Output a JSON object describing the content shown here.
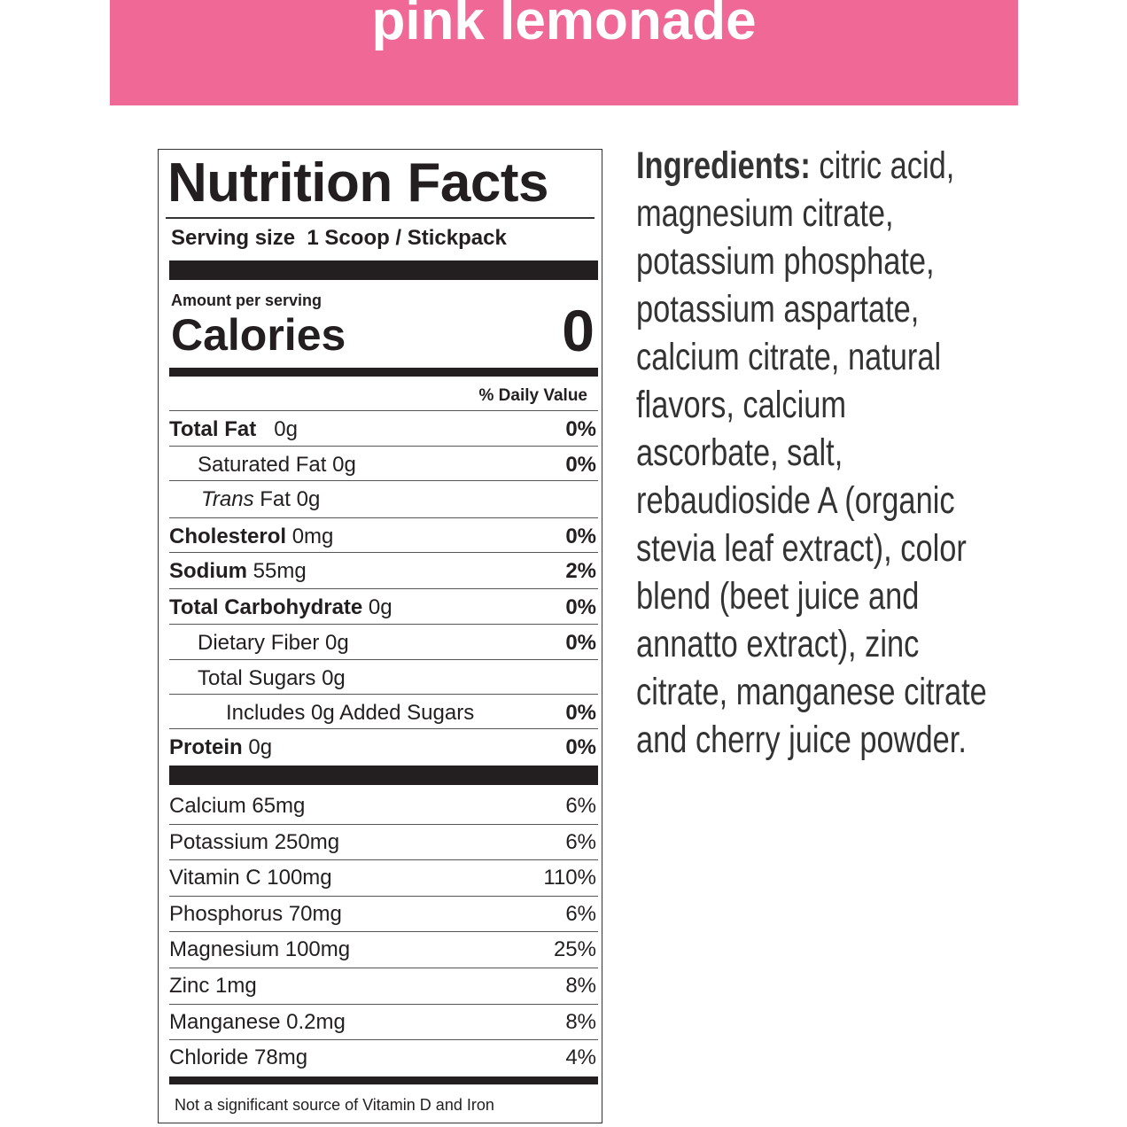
{
  "banner": {
    "title": "pink lemonade"
  },
  "nutrition": {
    "title": "Nutrition Facts",
    "serving_label": "Serving size",
    "serving_value": "1 Scoop / Stickpack",
    "amount_per_serving": "Amount per serving",
    "calories_label": "Calories",
    "calories_value": "0",
    "daily_value_header": "% Daily Value",
    "nutrients": [
      {
        "name": "Total Fat",
        "amount": "0g",
        "dv": "0%"
      },
      {
        "name": "Saturated Fat",
        "amount": "0g",
        "dv": "0%"
      },
      {
        "name_italic": "Trans",
        "name": "Fat",
        "amount": "0g"
      },
      {
        "name": "Cholesterol",
        "amount": "0mg",
        "dv": "0%"
      },
      {
        "name": "Sodium",
        "amount": "55mg",
        "dv": "2%"
      },
      {
        "name": "Total Carbohydrate",
        "amount": "0g",
        "dv": "0%"
      },
      {
        "name": "Dietary Fiber",
        "amount": "0g",
        "dv": "0%"
      },
      {
        "name": "Total Sugars",
        "amount": "0g"
      },
      {
        "name": "Includes 0g Added Sugars",
        "dv": "0%"
      },
      {
        "name": "Protein",
        "amount": "0g",
        "dv": "0%"
      }
    ],
    "vitamins": [
      {
        "name": "Calcium 65mg",
        "dv": "6%"
      },
      {
        "name": "Potassium 250mg",
        "dv": "6%"
      },
      {
        "name": "Vitamin C 100mg",
        "dv": "110%"
      },
      {
        "name": "Phosphorus 70mg",
        "dv": "6%"
      },
      {
        "name": "Magnesium 100mg",
        "dv": "25%"
      },
      {
        "name": "Zinc 1mg",
        "dv": "8%"
      },
      {
        "name": "Manganese 0.2mg",
        "dv": "8%"
      },
      {
        "name": "Chloride 78mg",
        "dv": "4%"
      }
    ],
    "footnote": "Not a significant source of Vitamin D and Iron"
  },
  "ingredients": {
    "label": "Ingredients:",
    "text": "citric acid, magnesium citrate, potassium phosphate, potassium aspartate, calcium citrate, natural flavors, calcium ascorbate, salt, rebaudioside A (organic stevia leaf extract), color blend (beet juice and annatto extract), zinc citrate, manganese citrate and cherry juice powder."
  }
}
